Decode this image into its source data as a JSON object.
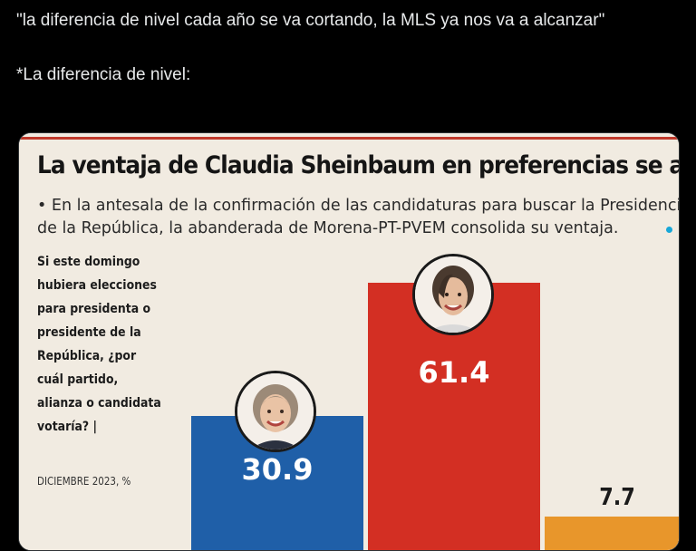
{
  "tweet": {
    "line1": "\"la diferencia de nivel cada año se va cortando, la MLS ya nos va a alcanzar\"",
    "line2": "*La diferencia de nivel:"
  },
  "graphic": {
    "headline": "La ventaja de Claudia Sheinbaum en preferencias se acentúa",
    "bullet_line1": "• En la antesala de la confirmación de las candidaturas para buscar la Presidencia",
    "bullet_line2": "de la República, la abanderada de Morena-PT-PVEM consolida su ventaja.",
    "question": "Si este domingo hubiera elecciones para presidenta o presidente de la República, ¿por cuál partido, alianza o candidata votaría? |",
    "date": "DICIEMBRE 2023, %",
    "accent_red": "#d32f23",
    "accent_blue": "#1f5fa8",
    "accent_orange": "#e8962b"
  },
  "chart_data": {
    "type": "bar",
    "categories": [
      "",
      "",
      ""
    ],
    "values": [
      30.9,
      61.4,
      7.7
    ],
    "value_labels": [
      "30.9",
      "61.4",
      "7.7"
    ],
    "colors": [
      "#1f5fa8",
      "#d32f23",
      "#e8962b"
    ],
    "ylim": [
      0,
      70
    ]
  }
}
